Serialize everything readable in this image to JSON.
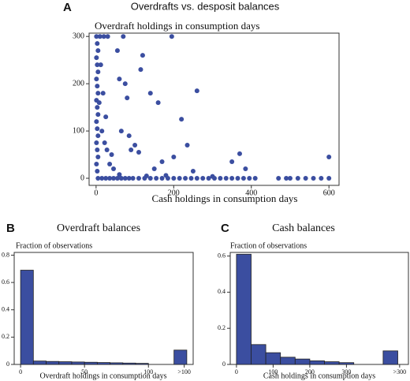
{
  "chart_data": [
    {
      "type": "scatter",
      "panel_label": "A",
      "title": "Overdrafts vs. desposit balances",
      "ylabel": "Overdraft holdings in consumption days",
      "xlabel": "Cash holdings in consumption days",
      "color": "#3b4ea0",
      "x": [
        1,
        3,
        5,
        1,
        3,
        5,
        1,
        3,
        5,
        1,
        3,
        5,
        1,
        3,
        5,
        1,
        3,
        5,
        1,
        3,
        10,
        20,
        30,
        12,
        18,
        25,
        15,
        28,
        35,
        22,
        40,
        45,
        8,
        55,
        70,
        60,
        75,
        80,
        65,
        85,
        100,
        90,
        110,
        115,
        120,
        140,
        160,
        195,
        200,
        220,
        235,
        260,
        150,
        170,
        250,
        350,
        370,
        385,
        600,
        60,
        130,
        180,
        300,
        5,
        15,
        25,
        35,
        45,
        55,
        65,
        75,
        85,
        95,
        110,
        125,
        140,
        155,
        170,
        185,
        200,
        215,
        230,
        245,
        260,
        275,
        290,
        305,
        320,
        335,
        350,
        365,
        380,
        395,
        410,
        470,
        490,
        500,
        520,
        540,
        560,
        580,
        600
      ],
      "values": [
        300,
        285,
        270,
        255,
        240,
        225,
        210,
        195,
        180,
        165,
        150,
        135,
        120,
        105,
        90,
        75,
        60,
        45,
        30,
        15,
        300,
        300,
        300,
        240,
        180,
        130,
        100,
        60,
        30,
        75,
        50,
        20,
        160,
        270,
        300,
        210,
        200,
        170,
        100,
        90,
        70,
        60,
        55,
        230,
        260,
        180,
        160,
        300,
        45,
        125,
        70,
        185,
        20,
        35,
        15,
        35,
        52,
        20,
        45,
        8,
        5,
        6,
        4,
        0,
        0,
        0,
        0,
        0,
        0,
        0,
        0,
        0,
        0,
        0,
        0,
        0,
        0,
        0,
        0,
        0,
        0,
        0,
        0,
        0,
        0,
        0,
        0,
        0,
        0,
        0,
        0,
        0,
        0,
        0,
        0,
        0,
        0,
        0,
        0,
        0,
        0,
        0
      ],
      "xlim": [
        -18,
        626
      ],
      "ylim": [
        -15,
        307
      ],
      "xticks": [
        0,
        200,
        400,
        600
      ],
      "yticks": [
        0,
        100,
        200,
        300
      ]
    },
    {
      "type": "histogram",
      "panel_label": "B",
      "title": "Overdraft balances",
      "ylabel": "Fraction of observations",
      "xlabel": "Overdraft holdings in consumption days",
      "color": "#3b4ea0",
      "bins": [
        0,
        10,
        20,
        30,
        40,
        50,
        60,
        70,
        80,
        90,
        100,
        110,
        120,
        130
      ],
      "values": [
        0.69,
        0.025,
        0.022,
        0.02,
        0.018,
        0.016,
        0.014,
        0.012,
        0.01,
        0.008,
        0,
        0,
        0.105
      ],
      "xlim": [
        -5,
        135
      ],
      "ylim": [
        0,
        0.82
      ],
      "xticks": [
        0,
        50,
        100,
        {
          "value": 128,
          "label": ">100"
        }
      ],
      "yticks": [
        0,
        0.2,
        0.4,
        0.6,
        0.8
      ]
    },
    {
      "type": "histogram",
      "panel_label": "C",
      "title": "Cash balances",
      "ylabel": "Fraction of observations",
      "xlabel": "Cash holdings in consumption days",
      "color": "#3b4ea0",
      "bins": [
        0,
        40,
        80,
        120,
        160,
        200,
        240,
        280,
        320,
        360,
        400,
        440
      ],
      "values": [
        0.61,
        0.11,
        0.065,
        0.04,
        0.03,
        0.02,
        0.015,
        0.01,
        0,
        0,
        0.075
      ],
      "xlim": [
        -17,
        469
      ],
      "ylim": [
        0,
        0.62
      ],
      "xticks": [
        0,
        100,
        200,
        300,
        {
          "value": 445,
          "label": ">300"
        }
      ],
      "yticks": [
        0,
        0.2,
        0.4,
        0.6
      ]
    }
  ]
}
